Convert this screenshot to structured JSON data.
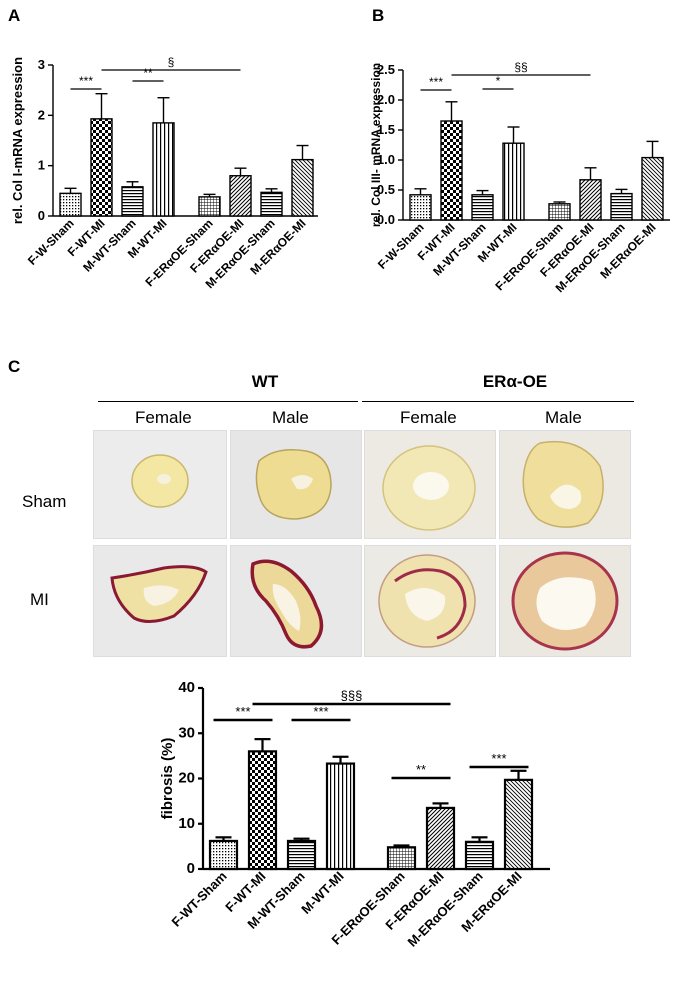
{
  "panel_a": {
    "letter": "A"
  },
  "panel_b": {
    "letter": "B"
  },
  "panel_c": {
    "letter": "C",
    "groups": [
      "WT",
      "ERα-OE"
    ],
    "columns": [
      "Female",
      "Male",
      "Female",
      "Male"
    ],
    "rows": [
      "Sham",
      "MI"
    ]
  },
  "chart_data": [
    {
      "type": "bar",
      "panel": "A",
      "ylabel": "rel. Col I-mRNA expression",
      "ylim": [
        0,
        3
      ],
      "yticks": [
        0,
        1,
        2,
        3
      ],
      "categories": [
        "F-W-Sham",
        "F-WT-MI",
        "M-WT-Sham",
        "M-WT-MI",
        "F-ERαOE-Sham",
        "F-ERαOE-MI",
        "M-ERαOE-Sham",
        "M-ERαOE-MI"
      ],
      "values": [
        0.45,
        1.93,
        0.58,
        1.85,
        0.38,
        0.8,
        0.47,
        1.12
      ],
      "errors": [
        0.1,
        0.5,
        0.1,
        0.5,
        0.05,
        0.15,
        0.07,
        0.28
      ],
      "significance": [
        {
          "from": 0,
          "to": 1,
          "label": "***"
        },
        {
          "from": 2,
          "to": 3,
          "label": "**"
        },
        {
          "from": 1,
          "to": 5,
          "label": "§"
        }
      ]
    },
    {
      "type": "bar",
      "panel": "B",
      "ylabel": "rel. Col III- mRNA expression",
      "ylim": [
        0,
        2.5
      ],
      "yticks": [
        0.0,
        0.5,
        1.0,
        1.5,
        2.0,
        2.5
      ],
      "categories": [
        "F-W-Sham",
        "F-WT-MI",
        "M-WT-Sham",
        "M-WT-MI",
        "F-ERαOE-Sham",
        "F-ERαOE-MI",
        "M-ERαOE-Sham",
        "M-ERαOE-MI"
      ],
      "values": [
        0.42,
        1.65,
        0.42,
        1.28,
        0.27,
        0.67,
        0.44,
        1.04
      ],
      "errors": [
        0.1,
        0.32,
        0.07,
        0.27,
        0.03,
        0.2,
        0.07,
        0.27
      ],
      "significance": [
        {
          "from": 0,
          "to": 1,
          "label": "***"
        },
        {
          "from": 2,
          "to": 3,
          "label": "*"
        },
        {
          "from": 1,
          "to": 5,
          "label": "§§"
        }
      ]
    },
    {
      "type": "bar",
      "panel": "C",
      "ylabel": "fibrosis (%)",
      "ylim": [
        0,
        40
      ],
      "yticks": [
        0,
        10,
        20,
        30,
        40
      ],
      "categories": [
        "F-WT-Sham",
        "F-WT-MI",
        "M-WT-Sham",
        "M-WT-MI",
        "F-ERαOE-Sham",
        "F-ERαOE-MI",
        "M-ERαOE-Sham",
        "M-ERαOE-MI"
      ],
      "values": [
        6.2,
        26.0,
        6.2,
        23.3,
        4.8,
        13.5,
        6.0,
        19.7
      ],
      "errors": [
        0.8,
        2.7,
        0.5,
        1.5,
        0.4,
        1.0,
        1.0,
        2.0
      ],
      "significance": [
        {
          "from": 0,
          "to": 1,
          "label": "***"
        },
        {
          "from": 2,
          "to": 3,
          "label": "***"
        },
        {
          "from": 4,
          "to": 5,
          "label": "**"
        },
        {
          "from": 6,
          "to": 7,
          "label": "***"
        },
        {
          "from": 1,
          "to": 5,
          "label": "§§§"
        }
      ]
    }
  ]
}
